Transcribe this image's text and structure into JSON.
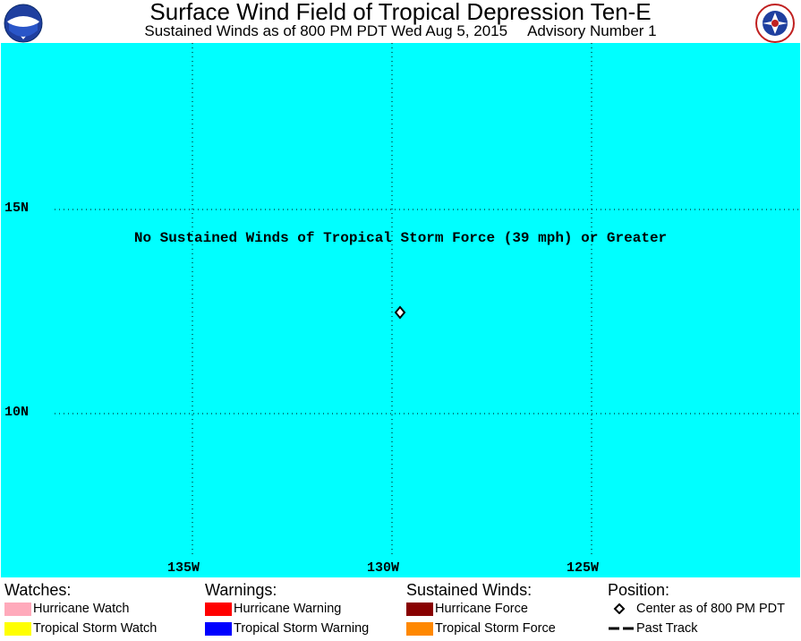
{
  "header": {
    "title": "Surface Wind Field of Tropical Depression Ten-E",
    "subtitle_left": "Sustained Winds as of 800 PM PDT Wed Aug 5, 2015",
    "subtitle_right": "Advisory Number 1",
    "logo_left_text": "NOAA",
    "logo_right_text": "NATIONAL WEATHER SERVICE"
  },
  "map": {
    "background_color": "#00ffff",
    "lat_labels": [
      "15N",
      "10N"
    ],
    "lon_labels": [
      "135W",
      "130W",
      "125W"
    ],
    "message": "No Sustained Winds of Tropical Storm Force (39 mph) or Greater",
    "storm_center": {
      "lat": 12.6,
      "lon": 129.8
    }
  },
  "legend": {
    "watches": {
      "heading": "Watches:",
      "items": [
        {
          "label": "Hurricane Watch",
          "color": "#ffaabb"
        },
        {
          "label": "Tropical Storm Watch",
          "color": "#ffff00"
        }
      ]
    },
    "warnings": {
      "heading": "Warnings:",
      "items": [
        {
          "label": "Hurricane Warning",
          "color": "#ff0000"
        },
        {
          "label": "Tropical Storm Warning",
          "color": "#0000ff"
        }
      ]
    },
    "winds": {
      "heading": "Sustained Winds:",
      "items": [
        {
          "label": "Hurricane Force",
          "color": "#880000"
        },
        {
          "label": "Tropical Storm Force",
          "color": "#ff8800"
        }
      ]
    },
    "position": {
      "heading": "Position:",
      "items": [
        {
          "label": "Center as of 800 PM PDT",
          "icon": "diamond-icon"
        },
        {
          "label": "Past Track",
          "icon": "dashed-line-icon"
        }
      ]
    }
  }
}
